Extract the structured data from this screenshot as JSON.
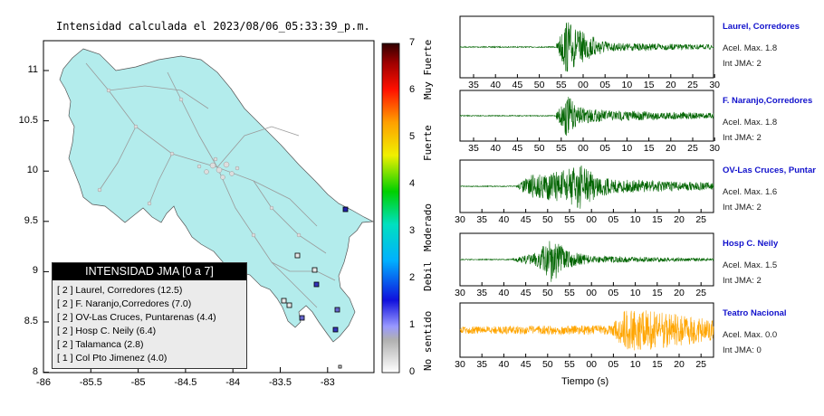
{
  "map": {
    "title": "Intensidad calculada el 2023/08/06_05:33:39_p.m.",
    "land_color": "#b3ecec",
    "x_ticks": [
      "-86",
      "-85.5",
      "-85",
      "-84.5",
      "-84",
      "-83.5",
      "-83"
    ],
    "y_ticks": [
      "11",
      "10.5",
      "10",
      "9.5",
      "9",
      "8.5",
      "8"
    ]
  },
  "colorbar": {
    "ticks": [
      "0",
      "1",
      "2",
      "3",
      "4",
      "5",
      "6",
      "7"
    ],
    "labels": [
      "No sentido",
      "Debil",
      "Moderado",
      "Fuerte",
      "Muy Fuerte"
    ]
  },
  "legend": {
    "header": "INTENSIDAD JMA [0 a 7]",
    "rows": [
      "[ 2 ]  Laurel, Corredores (12.5)",
      "[ 2 ]  F. Naranjo,Corredores (7.0)",
      "[ 2 ]  OV-Las Cruces, Puntarenas (4.4)",
      "[ 2 ]  Hosp C. Neily (6.4)",
      "[ 2 ]  Talamanca (2.8)",
      "[ 1 ]  Col Pto Jimenez (4.0)"
    ]
  },
  "stations": [
    {
      "name": "Laurel, Corredores",
      "accel": "Acel. Max. 1.8",
      "jma": "Int JMA: 2",
      "color": "#006400",
      "ticks": [
        "35",
        "40",
        "45",
        "50",
        "55",
        "00",
        "05",
        "10",
        "15",
        "20",
        "25",
        "30"
      ]
    },
    {
      "name": "F. Naranjo,Corredores",
      "accel": "Acel. Max. 1.8",
      "jma": "Int JMA: 2",
      "color": "#006400",
      "ticks": [
        "35",
        "40",
        "45",
        "50",
        "55",
        "00",
        "05",
        "10",
        "15",
        "20",
        "25",
        "30"
      ]
    },
    {
      "name": "OV-Las Cruces, Puntar",
      "accel": "Acel. Max. 1.6",
      "jma": "Int JMA: 2",
      "color": "#006400",
      "ticks": [
        "30",
        "35",
        "40",
        "45",
        "50",
        "55",
        "00",
        "05",
        "10",
        "15",
        "20",
        "25"
      ]
    },
    {
      "name": "Hosp C. Neily",
      "accel": "Acel. Max. 1.5",
      "jma": "Int JMA: 2",
      "color": "#006400",
      "ticks": [
        "30",
        "35",
        "40",
        "45",
        "50",
        "55",
        "00",
        "05",
        "10",
        "15",
        "20",
        "25"
      ]
    },
    {
      "name": "Teatro Nacional",
      "accel": "Acel. Max. 0.0",
      "jma": "Int JMA: 0",
      "color": "#ffa500",
      "ticks": [
        "30",
        "35",
        "40",
        "45",
        "50",
        "55",
        "00",
        "05",
        "10",
        "15",
        "20",
        "25"
      ]
    }
  ],
  "time_axis_label": "Tiempo (s)"
}
